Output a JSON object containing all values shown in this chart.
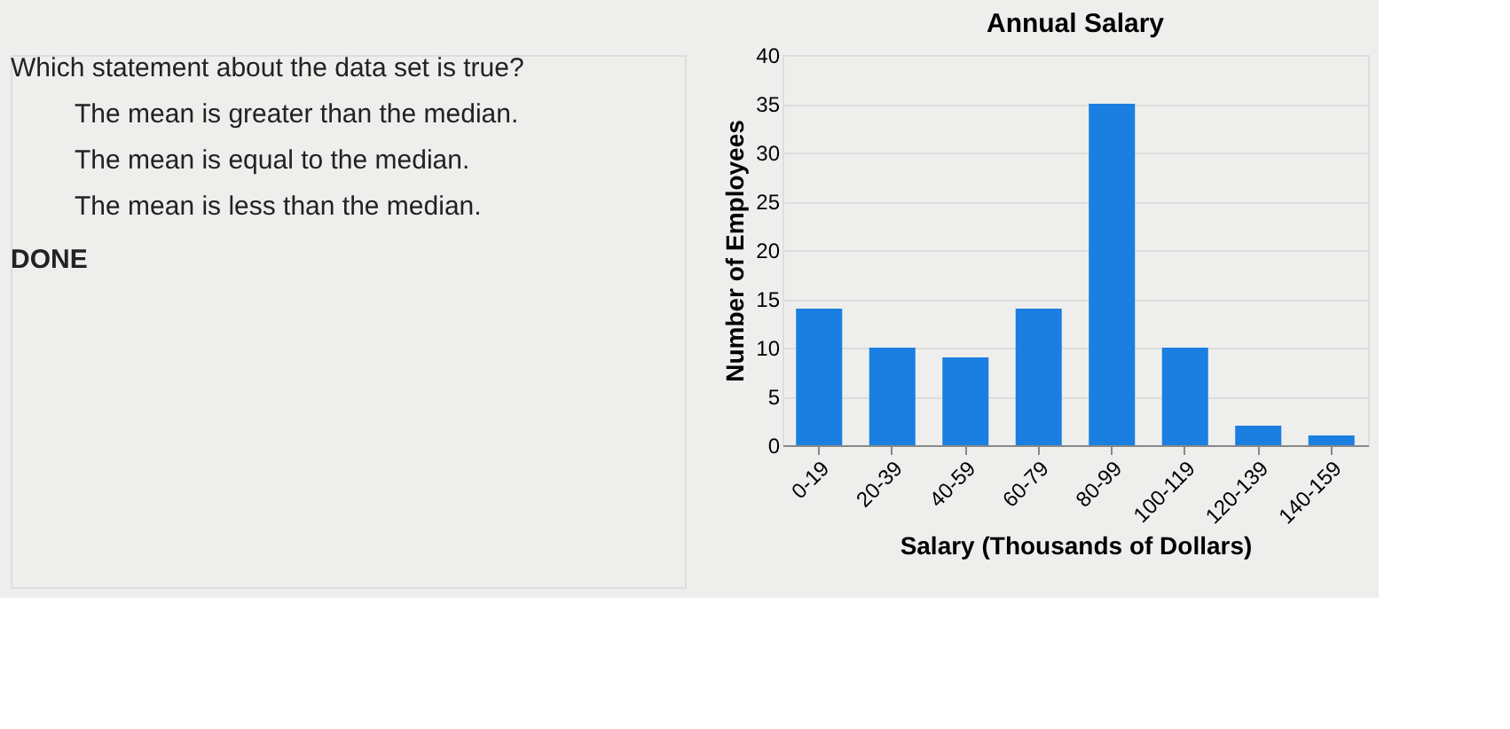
{
  "chart_data": {
    "type": "bar",
    "title": "Annual Salary",
    "xlabel": "Salary (Thousands of Dollars)",
    "ylabel": "Number of Employees",
    "categories": [
      "0-19",
      "20-39",
      "40-59",
      "60-79",
      "80-99",
      "100-119",
      "120-139",
      "140-159"
    ],
    "values": [
      14,
      10,
      9,
      14,
      35,
      10,
      2,
      1
    ],
    "color": "#1a7fe0",
    "ylim": [
      0,
      40
    ],
    "yticks": [
      0,
      5,
      10,
      15,
      20,
      25,
      30,
      35,
      40
    ],
    "grid": "y",
    "annotations": [
      "Which statement about the data set is true?",
      "The mean is greater than the median.",
      "The mean is equal to the median.",
      "The mean is less than the median.",
      "DONE"
    ]
  }
}
